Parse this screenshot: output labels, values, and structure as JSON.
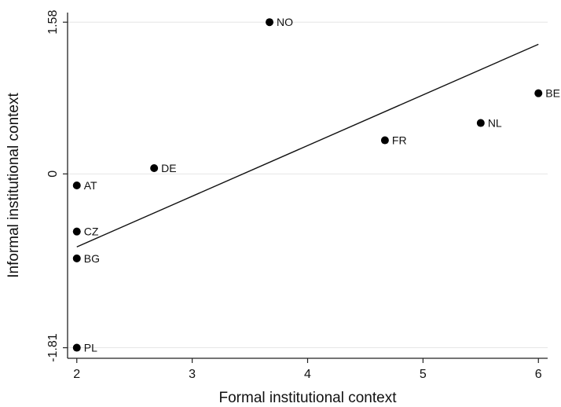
{
  "chart_data": {
    "type": "scatter",
    "title": "",
    "xlabel": "Formal institutional context",
    "ylabel": "Informal institutional context",
    "xlim": [
      1.92,
      6.08
    ],
    "ylim": [
      -1.92,
      1.68
    ],
    "x_ticks": [
      2,
      3,
      4,
      5,
      6
    ],
    "x_tick_labels": [
      "2",
      "3",
      "4",
      "5",
      "6"
    ],
    "y_ticks": [
      -1.81,
      0,
      1.58
    ],
    "y_tick_labels": [
      "-1.81",
      "0",
      "1.58"
    ],
    "grid": "horizontal",
    "points": [
      {
        "label": "NO",
        "x": 3.67,
        "y": 1.58
      },
      {
        "label": "BE",
        "x": 6.0,
        "y": 0.84
      },
      {
        "label": "NL",
        "x": 5.5,
        "y": 0.53
      },
      {
        "label": "FR",
        "x": 4.67,
        "y": 0.35
      },
      {
        "label": "DE",
        "x": 2.67,
        "y": 0.06
      },
      {
        "label": "AT",
        "x": 2.0,
        "y": -0.12
      },
      {
        "label": "CZ",
        "x": 2.0,
        "y": -0.6
      },
      {
        "label": "BG",
        "x": 2.0,
        "y": -0.88
      },
      {
        "label": "PL",
        "x": 2.0,
        "y": -1.81
      }
    ],
    "fit_line": {
      "x": [
        2.0,
        6.0
      ],
      "y": [
        -0.76,
        1.35
      ]
    }
  }
}
